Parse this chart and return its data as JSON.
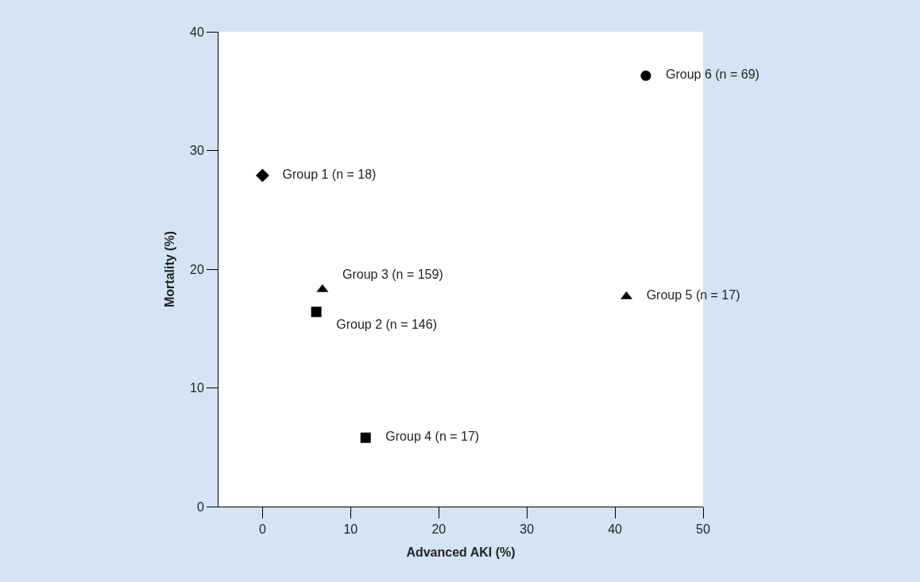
{
  "chart_data": {
    "type": "scatter",
    "xlabel": "Advanced AKI (%)",
    "ylabel": "Mortality (%)",
    "xlim": [
      -5,
      50
    ],
    "xticks": [
      0,
      10,
      20,
      30,
      40,
      50
    ],
    "ylim": [
      0,
      40
    ],
    "yticks": [
      0,
      10,
      20,
      30,
      40
    ],
    "legend": false,
    "series": [
      {
        "name": "Group 1 (n = 18)",
        "color": "#000000",
        "marker": "diamond",
        "x": [
          0
        ],
        "values": [
          27.9
        ]
      },
      {
        "name": "Group 2 (n = 146)",
        "color": "#000000",
        "marker": "square",
        "x": [
          6.1
        ],
        "values": [
          16.4
        ]
      },
      {
        "name": "Group 3 (n = 159)",
        "color": "#000000",
        "marker": "triangle",
        "x": [
          6.8
        ],
        "values": [
          18.3
        ]
      },
      {
        "name": "Group 4 (n = 17)",
        "color": "#000000",
        "marker": "square",
        "x": [
          11.7
        ],
        "values": [
          5.8
        ]
      },
      {
        "name": "Group 5 (n = 17)",
        "color": "#000000",
        "marker": "triangle",
        "x": [
          41.3
        ],
        "values": [
          17.7
        ]
      },
      {
        "name": "Group 6 (n = 69)",
        "color": "#000000",
        "marker": "circle",
        "x": [
          43.5
        ],
        "values": [
          36.3
        ]
      }
    ]
  }
}
